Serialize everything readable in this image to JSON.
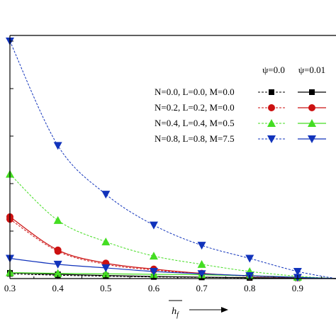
{
  "chart_data": {
    "type": "line",
    "title": "",
    "xlabel": "h_f",
    "ylabel": "",
    "xlim": [
      0.3,
      0.98
    ],
    "ylim": [
      0,
      1.0
    ],
    "xticks": [
      "0.3",
      "0.4",
      "0.5",
      "0.6",
      "0.7",
      "0.8",
      "0.9"
    ],
    "legend_position": "top-right",
    "legend_headers": [
      "ψ=0.0",
      "ψ=0.01"
    ],
    "grid": false,
    "groups": [
      {
        "label": "N=0.0, L=0.0, M=0.0",
        "color": "#000000",
        "marker": "square",
        "series": [
          {
            "name": "ψ=0.0",
            "style": "dashed",
            "x": [
              0.3,
              0.4,
              0.5,
              0.6,
              0.7,
              0.8,
              0.9,
              0.98
            ],
            "y": [
              0.02,
              0.014,
              0.01,
              0.007,
              0.005,
              0.003,
              0.002,
              0.0
            ]
          },
          {
            "name": "ψ=0.01",
            "style": "solid",
            "x": [
              0.3,
              0.4,
              0.5,
              0.6,
              0.7,
              0.8,
              0.9,
              0.98
            ],
            "y": [
              0.024,
              0.018,
              0.013,
              0.009,
              0.006,
              0.004,
              0.002,
              0.0
            ]
          }
        ]
      },
      {
        "label": "N=0.2, L=0.2, M=0.0",
        "color": "#cc1111",
        "marker": "circle",
        "series": [
          {
            "name": "ψ=0.0",
            "style": "dashed",
            "x": [
              0.3,
              0.4,
              0.5,
              0.6,
              0.7,
              0.8,
              0.9,
              0.98
            ],
            "y": [
              0.25,
              0.115,
              0.06,
              0.036,
              0.02,
              0.01,
              0.004,
              0.0
            ]
          },
          {
            "name": "ψ=0.01",
            "style": "solid",
            "x": [
              0.3,
              0.4,
              0.5,
              0.6,
              0.7,
              0.8,
              0.9,
              0.98
            ],
            "y": [
              0.26,
              0.12,
              0.065,
              0.04,
              0.022,
              0.011,
              0.005,
              0.0
            ]
          }
        ]
      },
      {
        "label": "N=0.4, L=0.4, M=0.5",
        "color": "#44dd22",
        "marker": "triangle-up",
        "series": [
          {
            "name": "ψ=0.0",
            "style": "dashed",
            "x": [
              0.3,
              0.4,
              0.5,
              0.6,
              0.7,
              0.8,
              0.9,
              0.98
            ],
            "y": [
              0.44,
              0.245,
              0.155,
              0.095,
              0.06,
              0.03,
              0.01,
              0.0
            ]
          },
          {
            "name": "ψ=0.01",
            "style": "solid",
            "x": [
              0.3,
              0.4,
              0.5,
              0.6,
              0.7,
              0.8,
              0.9,
              0.98
            ],
            "y": [
              0.025,
              0.022,
              0.02,
              0.018,
              0.016,
              0.012,
              0.006,
              0.0
            ]
          }
        ]
      },
      {
        "label": "N=0.8, L=0.8, M=7.5",
        "color": "#1133bb",
        "marker": "triangle-down",
        "series": [
          {
            "name": "ψ=0.0",
            "style": "dashed",
            "x": [
              0.3,
              0.4,
              0.5,
              0.6,
              0.7,
              0.8,
              0.9,
              0.98
            ],
            "y": [
              1.0,
              0.56,
              0.355,
              0.225,
              0.14,
              0.085,
              0.03,
              0.0
            ]
          },
          {
            "name": "ψ=0.01",
            "style": "solid",
            "x": [
              0.3,
              0.4,
              0.5,
              0.6,
              0.7,
              0.8,
              0.9,
              0.98
            ],
            "y": [
              0.085,
              0.06,
              0.045,
              0.03,
              0.02,
              0.012,
              0.005,
              0.0
            ]
          }
        ]
      }
    ]
  }
}
